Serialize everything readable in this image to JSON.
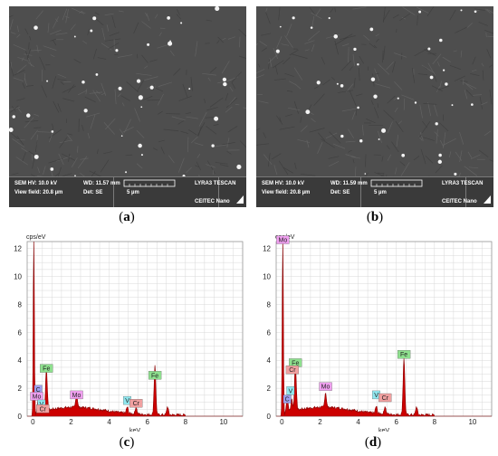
{
  "panels": [
    {
      "caption_letter": "a",
      "sem": {
        "hv": "SEM HV: 10.0 kV",
        "wd": "WD: 11.57 mm",
        "brand": "LYRA3 TESCAN",
        "view_field": "View field: 20.8 µm",
        "det": "Det: SE",
        "scale": "5 µm",
        "footer": "CEITEC Nano"
      }
    },
    {
      "caption_letter": "b",
      "sem": {
        "hv": "SEM HV: 10.0 kV",
        "wd": "WD: 11.59 mm",
        "brand": "LYRA3 TESCAN",
        "view_field": "View field: 20.8 µm",
        "det": "Det: SE",
        "scale": "5 µm",
        "footer": "CEITEC Nano"
      }
    },
    {
      "caption_letter": "c"
    },
    {
      "caption_letter": "d"
    }
  ],
  "colors": {
    "spectrum_fill": "#cc0000",
    "spectrum_line": "#8b0000",
    "grid": "#d8d8d8",
    "label_fe": "#8ee08e",
    "label_mo": "#f0a0f0",
    "label_c": "#a0a0f0",
    "label_v": "#90e8f0",
    "label_cr": "#f0a0a0"
  },
  "chart_data": [
    {
      "type": "area",
      "ylabel": "cps/eV",
      "xlabel": "keV",
      "xlim": [
        -0.3,
        11
      ],
      "ylim": [
        0,
        12.5
      ],
      "x_ticks": [
        0,
        2,
        4,
        6,
        8,
        10
      ],
      "y_ticks": [
        0,
        2,
        4,
        6,
        8,
        10,
        12
      ],
      "peaks": [
        {
          "x": 0.05,
          "y": 12.5
        },
        {
          "x": 0.28,
          "y": 0.9
        },
        {
          "x": 0.52,
          "y": 0.6
        },
        {
          "x": 0.71,
          "y": 3.0
        },
        {
          "x": 2.29,
          "y": 1.0
        },
        {
          "x": 4.95,
          "y": 0.45
        },
        {
          "x": 5.41,
          "y": 0.5
        },
        {
          "x": 6.4,
          "y": 3.6
        },
        {
          "x": 7.06,
          "y": 0.6
        }
      ],
      "annotations": [
        {
          "text": "Fe",
          "x": 0.71,
          "y": 3.2,
          "color": "label_fe"
        },
        {
          "text": "C",
          "x": 0.28,
          "y": 1.7,
          "color": "label_c"
        },
        {
          "text": "Mo",
          "x": 0.2,
          "y": 1.2,
          "color": "label_mo"
        },
        {
          "text": "V",
          "x": 0.45,
          "y": 0.65,
          "color": "label_v"
        },
        {
          "text": "Cr",
          "x": 0.52,
          "y": 0.3,
          "color": "label_cr"
        },
        {
          "text": "Mo",
          "x": 2.29,
          "y": 1.3,
          "color": "label_mo"
        },
        {
          "text": "V",
          "x": 4.95,
          "y": 0.9,
          "color": "label_v"
        },
        {
          "text": "Cr",
          "x": 5.41,
          "y": 0.7,
          "color": "label_cr"
        },
        {
          "text": "Fe",
          "x": 6.4,
          "y": 2.7,
          "color": "label_fe"
        }
      ]
    },
    {
      "type": "area",
      "ylabel": "cps/eV",
      "xlabel": "keV",
      "xlim": [
        -0.3,
        11
      ],
      "ylim": [
        0,
        12.5
      ],
      "x_ticks": [
        0,
        2,
        4,
        6,
        8,
        10
      ],
      "y_ticks": [
        0,
        2,
        4,
        6,
        8,
        10,
        12
      ],
      "peaks": [
        {
          "x": 0.05,
          "y": 12.5
        },
        {
          "x": 0.28,
          "y": 1.0
        },
        {
          "x": 0.52,
          "y": 0.8
        },
        {
          "x": 0.71,
          "y": 3.4
        },
        {
          "x": 2.29,
          "y": 1.05
        },
        {
          "x": 4.95,
          "y": 0.5
        },
        {
          "x": 5.41,
          "y": 0.55
        },
        {
          "x": 6.4,
          "y": 4.1
        },
        {
          "x": 7.06,
          "y": 0.6
        }
      ],
      "annotations": [
        {
          "text": "Mo",
          "x": 0.05,
          "y": 12.4,
          "color": "label_mo"
        },
        {
          "text": "Fe",
          "x": 0.71,
          "y": 3.6,
          "color": "label_fe"
        },
        {
          "text": "Cr",
          "x": 0.55,
          "y": 3.1,
          "color": "label_cr"
        },
        {
          "text": "V",
          "x": 0.45,
          "y": 1.6,
          "color": "label_v"
        },
        {
          "text": "C",
          "x": 0.28,
          "y": 1.0,
          "color": "label_c"
        },
        {
          "text": "Mo",
          "x": 2.29,
          "y": 1.9,
          "color": "label_mo"
        },
        {
          "text": "V",
          "x": 4.95,
          "y": 1.3,
          "color": "label_v"
        },
        {
          "text": "Cr",
          "x": 5.41,
          "y": 1.1,
          "color": "label_cr"
        },
        {
          "text": "Fe",
          "x": 6.4,
          "y": 4.2,
          "color": "label_fe"
        }
      ]
    }
  ]
}
